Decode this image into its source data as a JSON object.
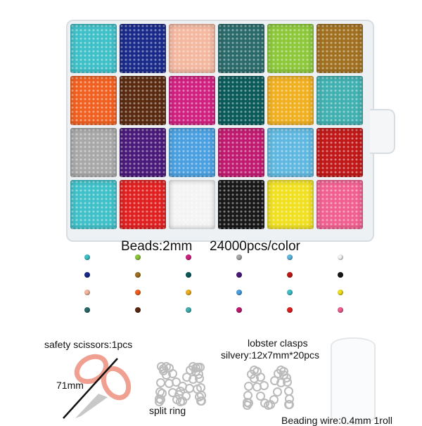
{
  "bead_colors": [
    "#3fc0c8",
    "#1a2a8a",
    "#f4b8a0",
    "#2a6a6a",
    "#8cc83a",
    "#a07020",
    "#f06020",
    "#5a2a10",
    "#d02080",
    "#0a5a5a",
    "#f0b020",
    "#40b0b0",
    "#a8a8a8",
    "#4a1a7a",
    "#4aa0e0",
    "#c01a70",
    "#60b8e0",
    "#c01818",
    "#40c0c8",
    "#e02020",
    "#f4f4f4",
    "#181818",
    "#f0e020",
    "#f06090"
  ],
  "texts": {
    "beads": "Beads:2mm",
    "pcs": "24000pcs/color",
    "scissors": "safety scissors:1pcs",
    "scissors_size": "71mm",
    "split_ring": "split ring",
    "clasps": "lobster clasps",
    "clasps_size": "silvery:12x7mm*20pcs",
    "wire": "Beading wire:0.4mm 1roll"
  },
  "accent": {
    "scissors_handle": "#f0a090"
  }
}
